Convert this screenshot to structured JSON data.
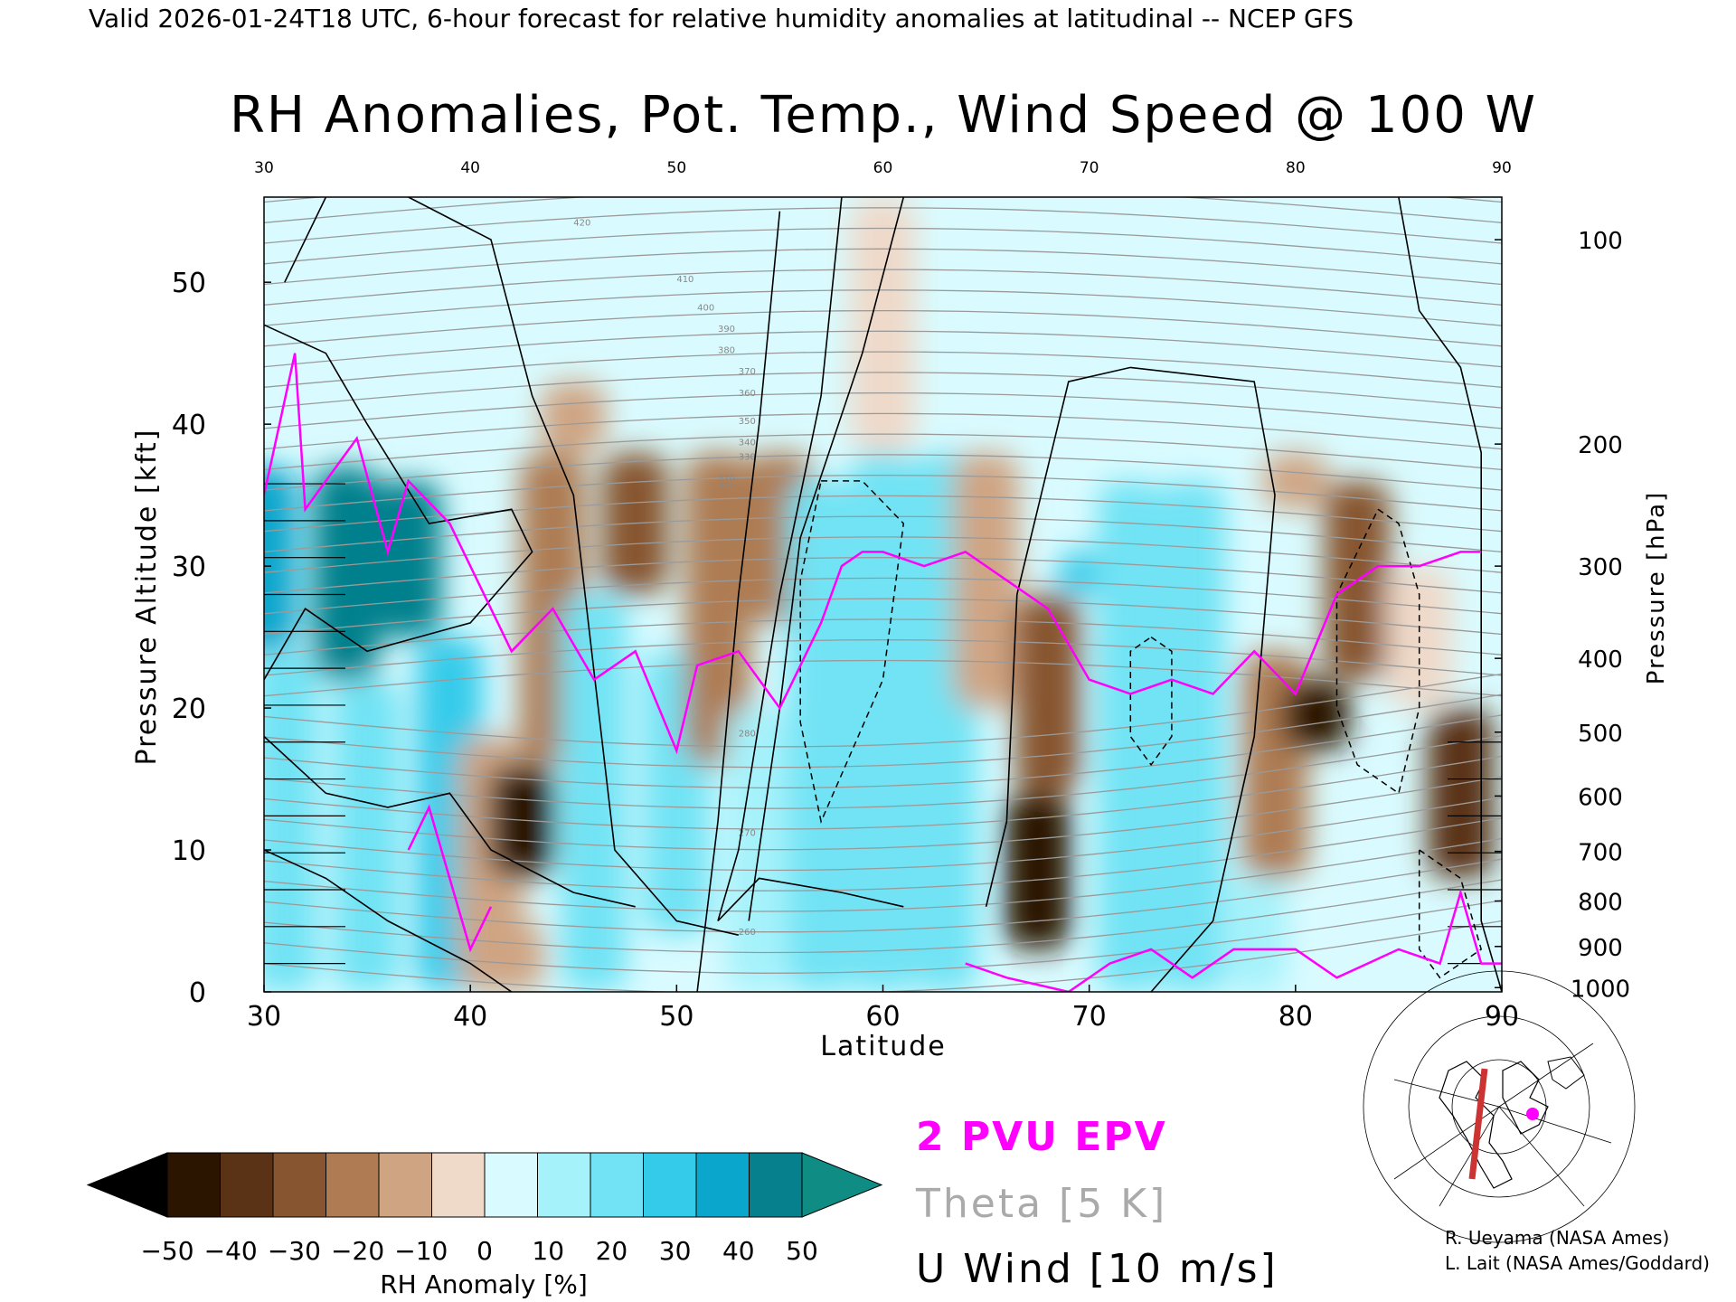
{
  "header": {
    "valid_line": "Valid 2026-01-24T18 UTC, 6-hour forecast for relative humidity anomalies at latitudinal -- NCEP GFS"
  },
  "chart_data": {
    "type": "heatmap",
    "title": "RH Anomalies, Pot. Temp., Wind Speed @ 100 W",
    "xlabel": "Latitude",
    "ylabel": "Pressure Altitude [kft]",
    "y2label": "Pressure [hPa]",
    "xlim": [
      30,
      90
    ],
    "ylim": [
      0,
      56
    ],
    "x_ticks": [
      30,
      40,
      50,
      60,
      70,
      80,
      90
    ],
    "x_tick_labels": [
      "30",
      "40",
      "50",
      "60",
      "70",
      "80",
      "90"
    ],
    "y_ticks": [
      0,
      10,
      20,
      30,
      40,
      50
    ],
    "y_tick_labels": [
      "0",
      "10",
      "20",
      "30",
      "40",
      "50"
    ],
    "pressure_ticks": [
      {
        "kft": 53,
        "label": "100"
      },
      {
        "kft": 38.6,
        "label": "200"
      },
      {
        "kft": 30,
        "label": "300"
      },
      {
        "kft": 23.5,
        "label": "400"
      },
      {
        "kft": 18.3,
        "label": "500"
      },
      {
        "kft": 13.8,
        "label": "600"
      },
      {
        "kft": 9.9,
        "label": "700"
      },
      {
        "kft": 6.4,
        "label": "800"
      },
      {
        "kft": 3.2,
        "label": "900"
      },
      {
        "kft": 0.3,
        "label": "1000"
      }
    ],
    "rh_field": [
      {
        "x": 30,
        "y0": 24,
        "y1": 37,
        "v": 40
      },
      {
        "x": 34,
        "y0": 22,
        "y1": 37,
        "v": 45
      },
      {
        "x": 37,
        "y0": 25,
        "y1": 36,
        "v": 48
      },
      {
        "x": 31,
        "y0": 0,
        "y1": 24,
        "v": 20
      },
      {
        "x": 35,
        "y0": 0,
        "y1": 22,
        "v": 22
      },
      {
        "x": 39,
        "y0": 0,
        "y1": 25,
        "v": 25
      },
      {
        "x": 41,
        "y0": 0,
        "y1": 18,
        "v": -10
      },
      {
        "x": 42.5,
        "y0": 8,
        "y1": 16,
        "v": -45
      },
      {
        "x": 44,
        "y0": 16,
        "y1": 38,
        "v": -25
      },
      {
        "x": 46,
        "y0": 0,
        "y1": 28,
        "v": 20
      },
      {
        "x": 48,
        "y0": 28,
        "y1": 38,
        "v": -30
      },
      {
        "x": 50,
        "y0": 4,
        "y1": 24,
        "v": 20
      },
      {
        "x": 52,
        "y0": 16,
        "y1": 38,
        "v": -25
      },
      {
        "x": 54,
        "y0": 0,
        "y1": 20,
        "v": 10
      },
      {
        "x": 55,
        "y0": 26,
        "y1": 38,
        "v": -20
      },
      {
        "x": 57,
        "y0": 0,
        "y1": 36,
        "v": 18
      },
      {
        "x": 60,
        "y0": 0,
        "y1": 38,
        "v": 22
      },
      {
        "x": 63,
        "y0": 0,
        "y1": 38,
        "v": 20
      },
      {
        "x": 65,
        "y0": 20,
        "y1": 38,
        "v": -15
      },
      {
        "x": 67.5,
        "y0": 3,
        "y1": 14,
        "v": -50
      },
      {
        "x": 68,
        "y0": 14,
        "y1": 28,
        "v": -30
      },
      {
        "x": 70,
        "y0": 28,
        "y1": 31,
        "v": 30
      },
      {
        "x": 72,
        "y0": 0,
        "y1": 36,
        "v": 22
      },
      {
        "x": 75,
        "y0": 0,
        "y1": 36,
        "v": 18
      },
      {
        "x": 79,
        "y0": 8,
        "y1": 24,
        "v": -20
      },
      {
        "x": 81,
        "y0": 17,
        "y1": 22,
        "v": -48
      },
      {
        "x": 83,
        "y0": 22,
        "y1": 36,
        "v": -30
      },
      {
        "x": 86,
        "y0": 20,
        "y1": 30,
        "v": -5
      },
      {
        "x": 88,
        "y0": 8,
        "y1": 20,
        "v": -35
      },
      {
        "x": 78,
        "y0": 0,
        "y1": 8,
        "v": 15
      },
      {
        "x": 42,
        "y0": 0,
        "y1": 5,
        "v": -15
      },
      {
        "x": 60,
        "y0": 38,
        "y1": 56,
        "v": -3
      },
      {
        "x": 45,
        "y0": 38,
        "y1": 43,
        "v": -12
      },
      {
        "x": 80,
        "y0": 34,
        "y1": 38,
        "v": -10
      }
    ],
    "series": [
      {
        "name": "2 PVU EPV",
        "color": "#ff00ff",
        "x": [
          30,
          31.5,
          32,
          34.5,
          36,
          37,
          39,
          40,
          42,
          44,
          46,
          48,
          50,
          51,
          53,
          55,
          57,
          58,
          59,
          60,
          62,
          64,
          66,
          68,
          70,
          72,
          74,
          76,
          78,
          80,
          82,
          84,
          86,
          88,
          89
        ],
        "y": [
          35,
          45,
          34,
          39,
          31,
          36,
          33,
          30,
          24,
          27,
          22,
          24,
          17,
          23,
          24,
          20,
          26,
          30,
          31,
          31,
          30,
          31,
          29,
          27,
          22,
          21,
          22,
          21,
          24,
          21,
          28,
          30,
          30,
          31,
          31
        ]
      },
      {
        "name": "Theta [5 K]",
        "color": "#999999",
        "levels": [
          260,
          270,
          280,
          310,
          320,
          330,
          340,
          350,
          360,
          370,
          380,
          390,
          400,
          410,
          420
        ]
      },
      {
        "name": "U Wind [10 m/s]",
        "color": "#000000",
        "levels": [
          0,
          10,
          20,
          30
        ]
      }
    ],
    "colorbar": {
      "label": "RH Anomaly [%]",
      "ticks": [
        "−50",
        "−40",
        "−30",
        "−20",
        "−10",
        "0",
        "10",
        "20",
        "30",
        "40",
        "50"
      ],
      "colors": [
        "#2b1500",
        "#5a3216",
        "#87552f",
        "#ae7b52",
        "#cfa483",
        "#efd9c9",
        "#d9fbff",
        "#a6f2fb",
        "#71e3f4",
        "#34cbea",
        "#0ba6cc",
        "#06808c"
      ],
      "under_color": "#000000",
      "over_color": "#0f8c84"
    },
    "legend": {
      "items": [
        "2 PVU EPV",
        "Theta [5 K]",
        "U Wind [10 m/s]"
      ],
      "colors": [
        "#ff00ff",
        "#aaaaaa",
        "#000000"
      ],
      "placement": "bottom-center"
    }
  },
  "credits": [
    "R. Ueyama (NASA Ames)",
    "L. Lait (NASA Ames/Goddard)"
  ],
  "inset_map": {
    "icon": "north-america-map-icon",
    "track_color": "#cc3333",
    "marker_color": "#ff00ff"
  }
}
